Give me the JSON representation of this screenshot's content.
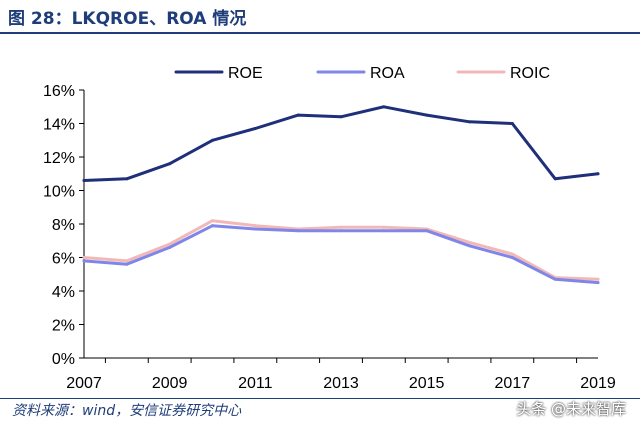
{
  "title": "图 28：LKQROE、ROA 情况",
  "source": "资料来源：wind，安信证券研究中心",
  "watermark": "头条 @未来智库",
  "chart_data": {
    "type": "line",
    "x": [
      2007,
      2008,
      2009,
      2010,
      2011,
      2012,
      2013,
      2014,
      2015,
      2016,
      2017,
      2018,
      2019
    ],
    "xticks": [
      "2007",
      "2009",
      "2011",
      "2013",
      "2015",
      "2017",
      "2019"
    ],
    "ylim": [
      0,
      16
    ],
    "yticks": [
      "0%",
      "2%",
      "4%",
      "6%",
      "8%",
      "10%",
      "12%",
      "14%",
      "16%"
    ],
    "unit": "%",
    "series": [
      {
        "name": "ROE",
        "color": "#1f2f7a",
        "values": [
          10.6,
          10.7,
          11.6,
          13.0,
          13.7,
          14.5,
          14.4,
          15.0,
          14.5,
          14.1,
          14.0,
          10.7,
          11.0
        ]
      },
      {
        "name": "ROA",
        "color": "#7f86e8",
        "values": [
          5.8,
          5.6,
          6.6,
          7.9,
          7.7,
          7.6,
          7.6,
          7.6,
          7.6,
          6.7,
          6.0,
          4.7,
          4.5
        ]
      },
      {
        "name": "ROIC",
        "color": "#f2b8b8",
        "values": [
          6.0,
          5.8,
          6.8,
          8.2,
          7.9,
          7.7,
          7.8,
          7.8,
          7.7,
          6.9,
          6.2,
          4.8,
          4.7
        ]
      }
    ]
  }
}
